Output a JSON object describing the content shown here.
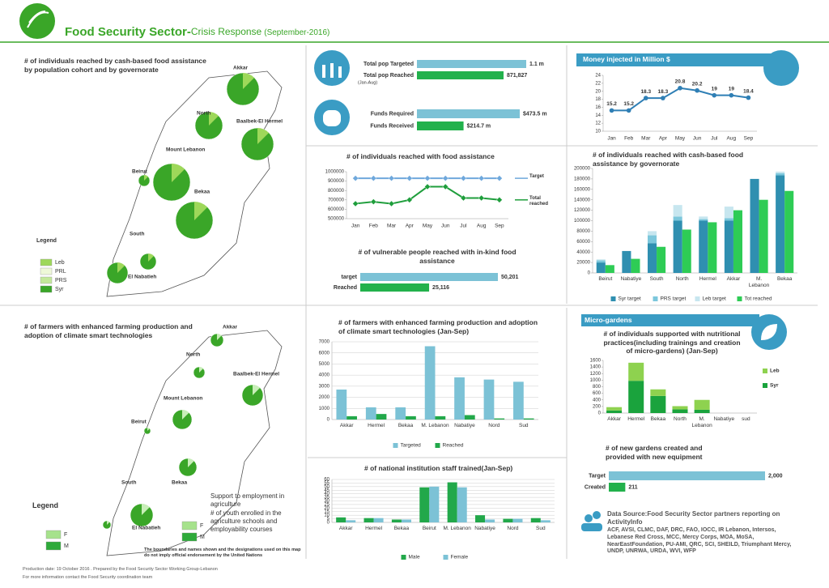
{
  "header": {
    "title": "Food Security Sector-",
    "subtitle": "Crisis Response",
    "date": "(September-2016)"
  },
  "maps": [
    {
      "title": "# of individuals reached by cash-based food assistance by population cohort and by governorate",
      "labels": [
        "Akkar",
        "North",
        "Baalbek-El Hermel",
        "Mount Lebanon",
        "Beirut",
        "Bekaa",
        "South",
        "El Nabatieh"
      ],
      "legend_title": "Legend",
      "legend": [
        "Leb",
        "PRL",
        "PRS",
        "Syr"
      ],
      "legend_colors": [
        "#9ed85a",
        "#eef8d8",
        "#c3e89a",
        "#3aa628"
      ]
    },
    {
      "title": "# of farmers with enhanced farming production and adoption of climate smart technologies",
      "labels": [
        "Akkar",
        "North",
        "Baalbek-El Hermel",
        "Mount Lebanon",
        "Beirut",
        "Bekaa",
        "South",
        "El Nabatieh"
      ],
      "legend_title": "Legend",
      "legend": [
        "F",
        "M"
      ],
      "legend_colors": [
        "#a6e28c",
        "#2eaa3a"
      ],
      "side_title": "Support to employment in agriculture",
      "side_text": "# of youth enrolled in the agriculture schools and employability courses",
      "disclaimer": "The boundaries and names shown and the designations used on this map do not imply official endorsement by the United Nations"
    }
  ],
  "chart_data": [
    {
      "type": "hbar",
      "categories": [
        "Total pop Targeted",
        "Total pop Reached"
      ],
      "note": "(Jan-Aug)",
      "values": [
        1100000,
        871827
      ],
      "value_labels": [
        "1.1 m",
        "871,827"
      ],
      "colors": [
        "#7cc2d6",
        "#22b14c"
      ]
    },
    {
      "type": "hbar",
      "categories": [
        "Funds Required",
        "Funds Received"
      ],
      "values": [
        473.5,
        214.7
      ],
      "value_labels": [
        "$473.5 m",
        "$214.7 m"
      ],
      "colors": [
        "#7cc2d6",
        "#22b14c"
      ]
    },
    {
      "type": "line",
      "title": "Money injected in Million $",
      "categories": [
        "Jan",
        "Feb",
        "Mar",
        "Apr",
        "May",
        "Jun",
        "Jul",
        "Aug",
        "Sep"
      ],
      "series": [
        {
          "name": null,
          "color": "#2f7fb5",
          "values": [
            15.2,
            15.2,
            18.3,
            18.3,
            20.8,
            20.2,
            19,
            19,
            18.4
          ]
        }
      ],
      "ylim": [
        10,
        24
      ],
      "yticks": [
        10,
        12,
        14,
        16,
        18,
        20,
        22,
        24
      ],
      "data_labels": true,
      "marker": "circle"
    },
    {
      "type": "line",
      "title": "# of individuals reached with food assistance",
      "categories": [
        "Jan",
        "Feb",
        "Mar",
        "Apr",
        "May",
        "Jun",
        "Jul",
        "Aug",
        "Sep"
      ],
      "series": [
        {
          "name": "Target",
          "color": "#6fa8dc",
          "values": [
            930000,
            930000,
            930000,
            930000,
            930000,
            930000,
            930000,
            930000,
            930000
          ]
        },
        {
          "name": "Total reached",
          "color": "#1f9e3c",
          "values": [
            660000,
            680000,
            660000,
            700000,
            840000,
            840000,
            720000,
            720000,
            700000
          ]
        }
      ],
      "ylim": [
        500000,
        1000000
      ],
      "yticks": [
        500000,
        600000,
        700000,
        800000,
        900000,
        1000000
      ],
      "data_labels": false,
      "marker": "diamond",
      "legend": "right"
    },
    {
      "type": "hbar",
      "title": "# of vulnerable people reached with in-kind food assistance",
      "categories": [
        "target",
        "Reached"
      ],
      "values": [
        50201,
        25116
      ],
      "value_labels": [
        "50,201",
        "25,116"
      ],
      "colors": [
        "#7cc2d6",
        "#22b14c"
      ]
    },
    {
      "type": "bar",
      "title": "# of individuals reached with cash-based food assistance by governorate",
      "categories": [
        "Beirut",
        "Nabatiye",
        "South",
        "North",
        "Hermel",
        "Akkar",
        "M. Lebanon",
        "Bekaa"
      ],
      "series": [
        {
          "name": "Syr target",
          "color": "#2f8fb0",
          "stack": "target",
          "values": [
            20000,
            42000,
            57000,
            100000,
            100000,
            100000,
            180000,
            187000
          ]
        },
        {
          "name": "PRS target",
          "color": "#7cc7dc",
          "stack": "target",
          "values": [
            4000,
            0,
            15000,
            8000,
            3000,
            5000,
            0,
            4000
          ]
        },
        {
          "name": "Leb target",
          "color": "#c7e6ef",
          "stack": "target",
          "values": [
            2000,
            0,
            8000,
            22000,
            5000,
            22000,
            0,
            3000
          ]
        },
        {
          "name": "Tot reached",
          "color": "#2ecc55",
          "stack": "reached",
          "values": [
            15000,
            27000,
            50000,
            83000,
            97000,
            120000,
            140000,
            157000
          ]
        }
      ],
      "ylim": [
        0,
        200000
      ],
      "yticks": [
        0,
        20000,
        40000,
        60000,
        80000,
        100000,
        120000,
        140000,
        160000,
        180000,
        200000
      ],
      "grid": false,
      "legend": "bottom"
    },
    {
      "type": "bar",
      "title": "# of farmers with enhanced farming production and adoption of climate smart technologies (Jan-Sep)",
      "categories": [
        "Akkar",
        "Hermel",
        "Bekaa",
        "M. Lebanon",
        "Nabatiye",
        "Nord",
        "Sud"
      ],
      "series": [
        {
          "name": "Targeted",
          "color": "#7cc2d6",
          "values": [
            2700,
            1100,
            1100,
            6600,
            3800,
            3600,
            3400
          ]
        },
        {
          "name": "Reached",
          "color": "#22a84a",
          "values": [
            300,
            500,
            300,
            300,
            400,
            100,
            100
          ]
        }
      ],
      "ylim": [
        0,
        7000
      ],
      "yticks": [
        0,
        1000,
        2000,
        3000,
        4000,
        5000,
        6000,
        7000
      ],
      "grid": true,
      "legend": "bottom"
    },
    {
      "type": "bar",
      "title": "# of national institution staff trained(Jan-Sep)",
      "categories": [
        "Akkar",
        "Hermel",
        "Bekaa",
        "Beirut",
        "M. Lebanon",
        "Nabatiye",
        "Nord",
        "Sud"
      ],
      "series": [
        {
          "name": "Male",
          "color": "#22a84a",
          "values": [
            7,
            6,
            4,
            49,
            56,
            10,
            5,
            6
          ]
        },
        {
          "name": "Female",
          "color": "#7cc2d6",
          "values": [
            3,
            6,
            4,
            50,
            49,
            4,
            5,
            3
          ]
        }
      ],
      "ylim": [
        0,
        60
      ],
      "yticks": [
        0,
        5,
        10,
        15,
        20,
        25,
        30,
        35,
        40,
        45,
        50,
        55,
        60
      ],
      "grid": true,
      "legend": "bottom"
    },
    {
      "type": "bar",
      "section": "Micro-gardens",
      "title": "# of individuals supported with nutritional practices(including trainings and creation of micro-gardens) (Jan-Sep)",
      "categories": [
        "Akkar",
        "Hermel",
        "Bekaa",
        "North",
        "M. Lebanon",
        "Nabatiye",
        "sud"
      ],
      "series": [
        {
          "name": "Syr",
          "color": "#1aa33d",
          "stack": "all",
          "values": [
            80,
            980,
            520,
            110,
            100,
            0,
            0
          ]
        },
        {
          "name": "Leb",
          "color": "#8ed24f",
          "stack": "all",
          "values": [
            100,
            550,
            200,
            100,
            300,
            0,
            0
          ]
        }
      ],
      "ylim": [
        0,
        1600
      ],
      "yticks": [
        0,
        200,
        400,
        600,
        800,
        1000,
        1200,
        1400,
        1600
      ],
      "grid": false,
      "legend": "right"
    },
    {
      "type": "hbar",
      "title": "# of new gardens created and provided with new equipment",
      "categories": [
        "Target",
        "Created"
      ],
      "values": [
        2000,
        211
      ],
      "value_labels": [
        "2,000",
        "211"
      ],
      "colors": [
        "#7cc2d6",
        "#22b14c"
      ]
    }
  ],
  "source": {
    "title": "Data Source:Food Security Sector partners reporting on ActivityInfo",
    "partners": "ACF, AVSI, CLMC, DAF, DRC, FAO, IOCC, IR Lebanon, Intersos, Lebanese Red Cross, MCC, Mercy Corps, MOA, MoSA, NearEastFoundation, PU-AMI, QRC, SCI, SHEILD, Triumphant Mercy, UNDP, UNRWA, URDA, WVI, WFP"
  },
  "footer": [
    "Production date: 19 October 2016 . Prepared by the Food Security Sector Working Group-Lebanon",
    "For more information contact the Food Security coordination team"
  ]
}
